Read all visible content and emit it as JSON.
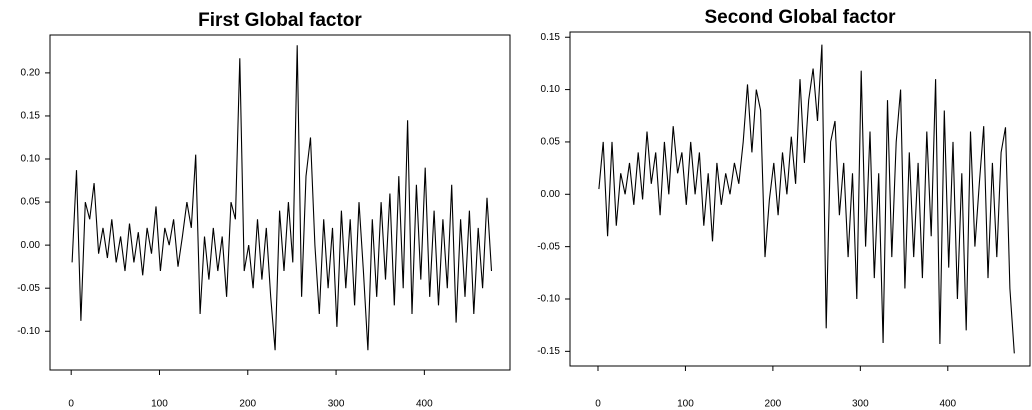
{
  "chart_data": [
    {
      "type": "line",
      "title": "First Global factor",
      "x": [
        1,
        6,
        11,
        16,
        21,
        26,
        31,
        36,
        41,
        46,
        51,
        56,
        61,
        66,
        71,
        76,
        81,
        86,
        91,
        96,
        101,
        106,
        111,
        116,
        121,
        126,
        131,
        136,
        141,
        146,
        151,
        156,
        161,
        166,
        171,
        176,
        181,
        186,
        191,
        196,
        201,
        206,
        211,
        216,
        221,
        226,
        231,
        236,
        241,
        246,
        251,
        256,
        261,
        266,
        271,
        276,
        281,
        286,
        291,
        296,
        301,
        306,
        311,
        316,
        321,
        326,
        331,
        336,
        341,
        346,
        351,
        356,
        361,
        366,
        371,
        376,
        381,
        386,
        391,
        396,
        401,
        406,
        411,
        416,
        421,
        426,
        431,
        436,
        441,
        446,
        451,
        456,
        461,
        466,
        471,
        476
      ],
      "values": [
        -0.02,
        0.087,
        -0.088,
        0.05,
        0.03,
        0.072,
        -0.01,
        0.02,
        -0.015,
        0.03,
        -0.02,
        0.01,
        -0.03,
        0.025,
        -0.02,
        0.015,
        -0.035,
        0.02,
        -0.01,
        0.045,
        -0.03,
        0.02,
        0.0,
        0.03,
        -0.025,
        0.01,
        0.05,
        0.02,
        0.105,
        -0.08,
        0.01,
        -0.04,
        0.02,
        -0.03,
        0.01,
        -0.06,
        0.05,
        0.03,
        0.217,
        -0.03,
        0.0,
        -0.05,
        0.03,
        -0.04,
        0.02,
        -0.06,
        -0.122,
        0.04,
        -0.03,
        0.05,
        -0.02,
        0.232,
        -0.06,
        0.08,
        0.125,
        0.0,
        -0.08,
        0.03,
        -0.05,
        0.02,
        -0.095,
        0.04,
        -0.05,
        0.03,
        -0.07,
        0.05,
        -0.03,
        -0.122,
        0.03,
        -0.06,
        0.05,
        -0.04,
        0.06,
        -0.07,
        0.08,
        -0.05,
        0.145,
        -0.08,
        0.07,
        -0.04,
        0.09,
        -0.06,
        0.04,
        -0.07,
        0.03,
        -0.05,
        0.07,
        -0.09,
        0.03,
        -0.06,
        0.04,
        -0.08,
        0.02,
        -0.05,
        0.055,
        -0.03
      ],
      "color": "#000000",
      "xlim": [
        -24,
        497
      ],
      "xticks": [
        0,
        100,
        200,
        300,
        400
      ],
      "ylim": [
        -0.145,
        0.244
      ],
      "yticks": [
        {
          "value": -0.1,
          "label": "-0.10"
        },
        -0.05,
        {
          "value": 0,
          "label": "0.00"
        },
        0.05,
        {
          "value": 0.1,
          "label": "0.10"
        },
        0.15,
        {
          "value": 0.2,
          "label": "0.20"
        }
      ]
    },
    {
      "type": "line",
      "title": "Second Global factor",
      "x": [
        1,
        6,
        11,
        16,
        21,
        26,
        31,
        36,
        41,
        46,
        51,
        56,
        61,
        66,
        71,
        76,
        81,
        86,
        91,
        96,
        101,
        106,
        111,
        116,
        121,
        126,
        131,
        136,
        141,
        146,
        151,
        156,
        161,
        166,
        171,
        176,
        181,
        186,
        191,
        196,
        201,
        206,
        211,
        216,
        221,
        226,
        231,
        236,
        241,
        246,
        251,
        256,
        261,
        266,
        271,
        276,
        281,
        286,
        291,
        296,
        301,
        306,
        311,
        316,
        321,
        326,
        331,
        336,
        341,
        346,
        351,
        356,
        361,
        366,
        371,
        376,
        381,
        386,
        391,
        396,
        401,
        406,
        411,
        416,
        421,
        426,
        431,
        436,
        441,
        446,
        451,
        456,
        461,
        466,
        471,
        476
      ],
      "values": [
        0.005,
        0.05,
        -0.04,
        0.05,
        -0.03,
        0.02,
        0.0,
        0.03,
        -0.01,
        0.04,
        -0.005,
        0.06,
        0.01,
        0.04,
        -0.02,
        0.05,
        0.0,
        0.065,
        0.02,
        0.04,
        -0.01,
        0.05,
        0.0,
        0.04,
        -0.03,
        0.02,
        -0.045,
        0.03,
        -0.01,
        0.02,
        0.0,
        0.03,
        0.01,
        0.05,
        0.105,
        0.04,
        0.1,
        0.08,
        -0.06,
        -0.005,
        0.03,
        -0.02,
        0.04,
        0.0,
        0.055,
        0.01,
        0.11,
        0.03,
        0.09,
        0.12,
        0.07,
        0.143,
        -0.128,
        0.05,
        0.07,
        -0.02,
        0.03,
        -0.06,
        0.02,
        -0.1,
        0.118,
        -0.05,
        0.06,
        -0.08,
        0.02,
        -0.142,
        0.09,
        -0.06,
        0.05,
        0.1,
        -0.09,
        0.04,
        -0.06,
        0.03,
        -0.08,
        0.06,
        -0.04,
        0.11,
        -0.143,
        0.08,
        -0.07,
        0.05,
        -0.1,
        0.02,
        -0.13,
        0.06,
        -0.05,
        0.01,
        0.065,
        -0.08,
        0.03,
        -0.06,
        0.04,
        0.064,
        -0.09,
        -0.152
      ],
      "color": "#000000",
      "xlim": [
        -32,
        494
      ],
      "xticks": [
        0,
        100,
        200,
        300,
        400
      ],
      "ylim": [
        -0.164,
        0.155
      ],
      "yticks": [
        -0.15,
        {
          "value": -0.1,
          "label": "-0.10"
        },
        -0.05,
        {
          "value": 0,
          "label": "0.00"
        },
        0.05,
        {
          "value": 0.1,
          "label": "0.10"
        },
        0.15
      ]
    }
  ]
}
